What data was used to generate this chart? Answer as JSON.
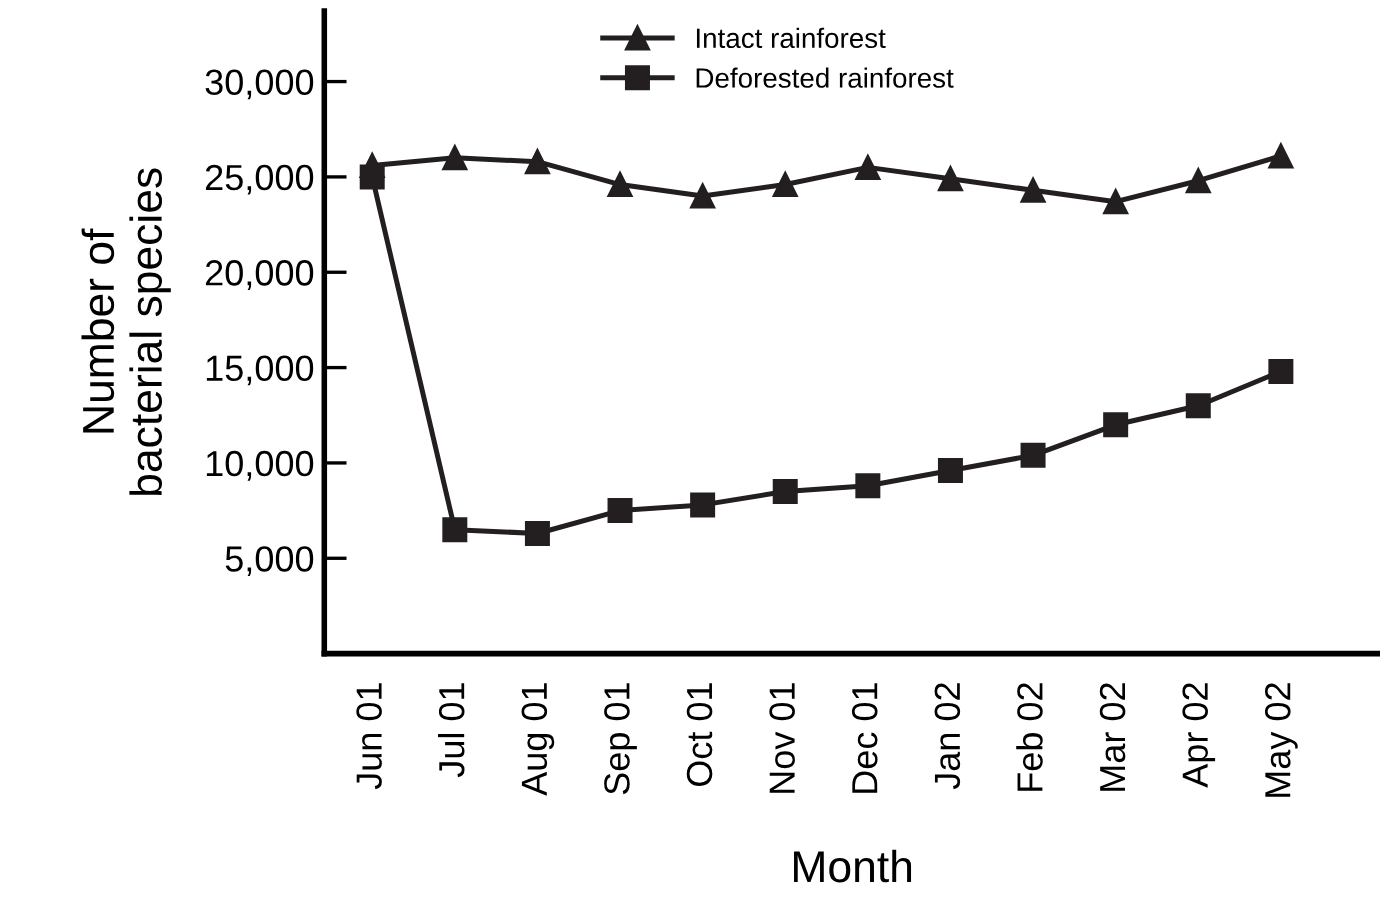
{
  "chart_data": {
    "type": "line",
    "xlabel": "Month",
    "ylabel": "Number of\nbacterial species",
    "categories": [
      "Jun 01",
      "Jul 01",
      "Aug 01",
      "Sep 01",
      "Oct 01",
      "Nov 01",
      "Dec 01",
      "Jan 02",
      "Feb 02",
      "Mar 02",
      "Apr 02",
      "May 02"
    ],
    "series": [
      {
        "name": "Intact rainforest",
        "color": "#231f20",
        "marker": "triangle",
        "values": [
          25600,
          26000,
          25800,
          24600,
          24000,
          24600,
          25500,
          24900,
          24300,
          23700,
          24800,
          26100
        ]
      },
      {
        "name": "Deforested rainforest",
        "color": "#231f20",
        "marker": "square",
        "values": [
          25000,
          6500,
          6300,
          7500,
          7800,
          8500,
          8800,
          9600,
          10400,
          12000,
          13000,
          14800
        ]
      }
    ],
    "ylim": [
      0,
      33700
    ],
    "yticks": [
      {
        "value": 5000,
        "label": "5,000"
      },
      {
        "value": 10000,
        "label": "10,000"
      },
      {
        "value": 15000,
        "label": "15,000"
      },
      {
        "value": 20000,
        "label": "20,000"
      },
      {
        "value": 25000,
        "label": "25,000"
      },
      {
        "value": 30000,
        "label": "30,000"
      }
    ],
    "grid": false,
    "legend": "top",
    "line_style": "solid"
  }
}
